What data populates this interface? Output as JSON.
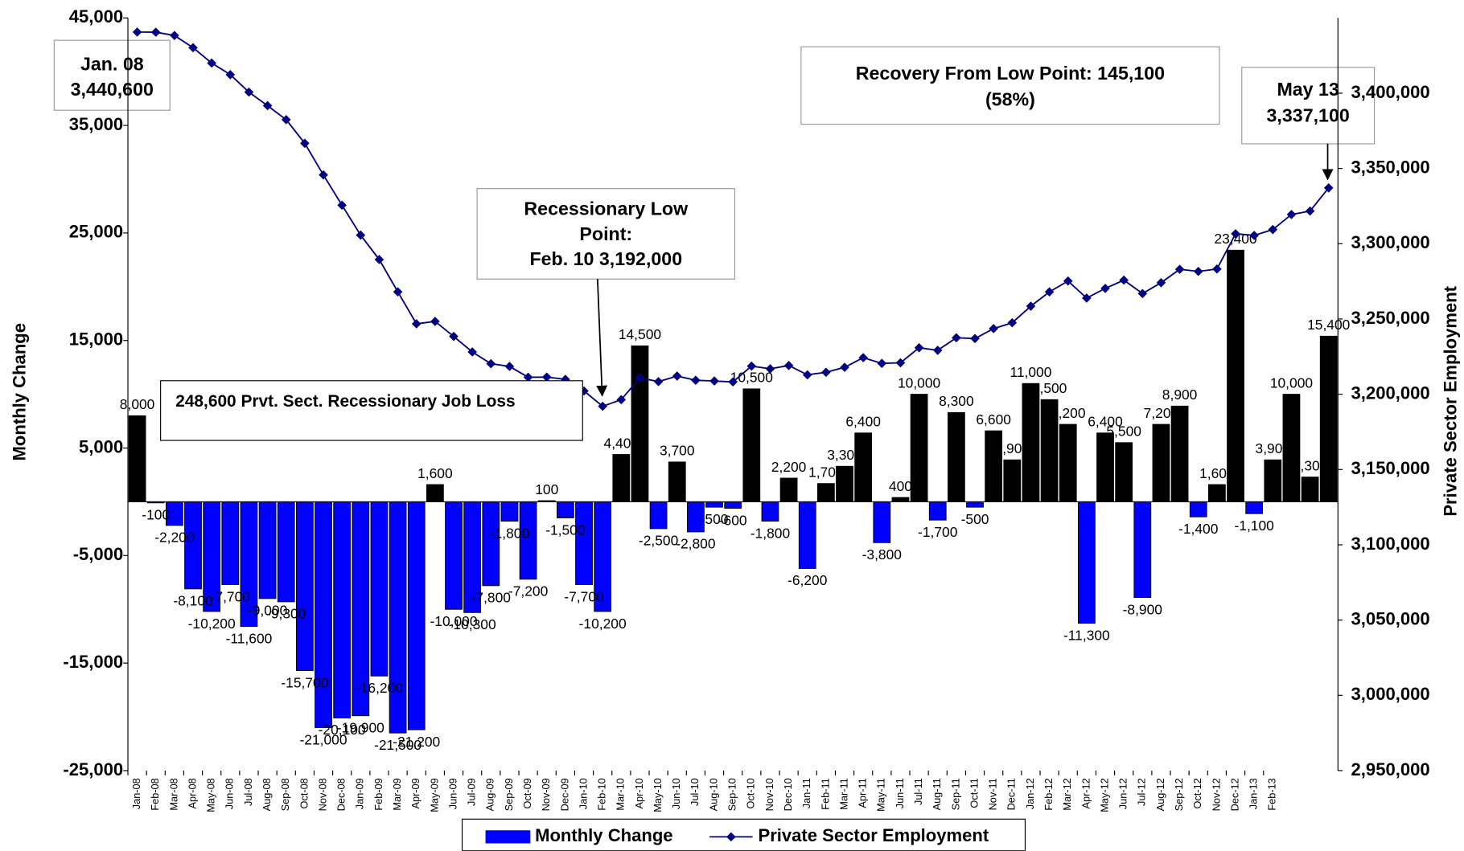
{
  "chart_data": {
    "type": "bar",
    "ylabel": "Monthly Change",
    "y2label": "Private Sector Employment",
    "categories": [
      "Jan-08",
      "Feb-08",
      "Mar-08",
      "Apr-08",
      "May-08",
      "Jun-08",
      "Jul-08",
      "Aug-08",
      "Sep-08",
      "Oct-08",
      "Nov-08",
      "Dec-08",
      "Jan-09",
      "Feb-09",
      "Mar-09",
      "Apr-09",
      "May-09",
      "Jun-09",
      "Jul-09",
      "Aug-09",
      "Sep-09",
      "Oct-09",
      "Nov-09",
      "Dec-09",
      "Jan-10",
      "Feb-10",
      "Mar-10",
      "Apr-10",
      "May-10",
      "Jun-10",
      "Jul-10",
      "Aug-10",
      "Sep-10",
      "Oct-10",
      "Nov-10",
      "Dec-10",
      "Jan-11",
      "Feb-11",
      "Mar-11",
      "Apr-11",
      "May-11",
      "Jun-11",
      "Jul-11",
      "Aug-11",
      "Sep-11",
      "Oct-11",
      "Nov-11",
      "Dec-11",
      "Jan-12",
      "Feb-12",
      "Mar-12",
      "Apr-12",
      "May-12",
      "Jun-12",
      "Jul-12",
      "Aug-12",
      "Sep-12",
      "Oct-12",
      "Nov-12",
      "Dec-12",
      "Jan-13",
      "Feb-13",
      null,
      null,
      null
    ],
    "series": [
      {
        "name": "Monthly Change",
        "type": "bar",
        "color": "#0000ff",
        "positive_color": "#000000",
        "values": [
          8000,
          -100,
          -2200,
          -8100,
          -10200,
          -7700,
          -11600,
          -9000,
          -9300,
          -15700,
          -21000,
          -20100,
          -19900,
          -16200,
          -21500,
          -21200,
          1600,
          -10000,
          -10300,
          -7800,
          -1800,
          -7200,
          100,
          -1500,
          -7700,
          -10200,
          4400,
          14500,
          -2500,
          3700,
          -2800,
          -500,
          -600,
          10500,
          -1800,
          2200,
          -6200,
          1700,
          3300,
          6400,
          -3800,
          400,
          10000,
          -1700,
          8300,
          -500,
          6600,
          3900,
          11000,
          9500,
          7200,
          -11300,
          6400,
          5500,
          -8900,
          7200,
          8900,
          -1400,
          1600,
          23400,
          -1100,
          3900,
          10000,
          2300,
          15400
        ],
        "value_labels": [
          "8,000",
          "-100",
          "-2,200",
          "-8,100",
          "-10,200",
          "-7,700",
          "-11,600",
          "-9,000",
          "-9,300",
          "-15,700",
          "-21,000",
          "-20,100",
          "-19,900",
          "-16,200",
          "-21,500",
          "-21,200",
          "1,600",
          "-10,000",
          "-10,300",
          "-7,800",
          "-1,800",
          "-7,200",
          "100",
          "-1,500",
          "-7,700",
          "-10,200",
          "4,400",
          "14,500",
          "-2,500",
          "3,700",
          "-2,800",
          "-500",
          "-600",
          "10,500",
          "-1,800",
          "2,200",
          "-6,200",
          "1,700",
          "3,300",
          "6,400",
          "-3,800",
          "400",
          "10,000",
          "-1,700",
          "8,300",
          "-500",
          "6,600",
          "3,900",
          "11,000",
          "9,500",
          "7,200",
          "-11,300",
          "6,400",
          "5,500",
          "-8,900",
          "7,200",
          "8,900",
          "-1,400",
          "1,600",
          "23,400",
          "-1,100",
          "3,900",
          "10,000",
          "2,300",
          "15,400"
        ]
      },
      {
        "name": "Private Sector Employment",
        "type": "line",
        "axis": "y2",
        "color": "#000080",
        "values": [
          3440600,
          3440500,
          3438300,
          3430200,
          3420000,
          3412300,
          3400700,
          3391700,
          3382400,
          3366700,
          3345700,
          3325600,
          3305700,
          3289500,
          3268000,
          3246800,
          3248400,
          3238400,
          3228100,
          3220300,
          3218500,
          3211300,
          3211400,
          3209900,
          3202200,
          3192000,
          3196400,
          3210900,
          3208400,
          3212100,
          3209300,
          3208800,
          3208200,
          3218700,
          3216900,
          3219100,
          3212900,
          3214600,
          3217900,
          3224300,
          3220500,
          3220900,
          3230900,
          3229200,
          3237500,
          3237000,
          3243600,
          3247500,
          3258500,
          3268000,
          3275200,
          3263900,
          3270300,
          3275800,
          3266900,
          3274100,
          3283000,
          3281600,
          3283200,
          3306600,
          3305500,
          3309400,
          3319400,
          3321700,
          3337100
        ]
      }
    ],
    "ylim": [
      -25000,
      45000
    ],
    "yticks": [
      {
        "value": -25000,
        "label": "-25,000"
      },
      {
        "value": -15000,
        "label": "-15,000"
      },
      {
        "value": -5000,
        "label": "-5,000"
      },
      {
        "value": 5000,
        "label": "5,000"
      },
      {
        "value": 15000,
        "label": "15,000"
      },
      {
        "value": 25000,
        "label": "25,000"
      },
      {
        "value": 35000,
        "label": "35,000"
      },
      {
        "value": 45000,
        "label": "45,000"
      }
    ],
    "y2lim": [
      2950000,
      3450000
    ],
    "y2ticks": [
      {
        "value": 2950000,
        "label": "2,950,000"
      },
      {
        "value": 3000000,
        "label": "3,000,000"
      },
      {
        "value": 3050000,
        "label": "3,050,000"
      },
      {
        "value": 3100000,
        "label": "3,100,000"
      },
      {
        "value": 3150000,
        "label": "3,150,000"
      },
      {
        "value": 3200000,
        "label": "3,200,000"
      },
      {
        "value": 3250000,
        "label": "3,250,000"
      },
      {
        "value": 3300000,
        "label": "3,300,000"
      },
      {
        "value": 3350000,
        "label": "3,350,000"
      },
      {
        "value": 3400000,
        "label": "3,400,000"
      }
    ],
    "legend": "bottom",
    "annotations": [
      {
        "lines": [
          "Jan. 08",
          "3,440,600"
        ]
      },
      {
        "lines": [
          "Recovery From Low Point: 145,100",
          "(58%)"
        ]
      },
      {
        "lines": [
          "May 13",
          "3,337,100"
        ]
      },
      {
        "lines": [
          "Recessionary Low",
          "Point:",
          "Feb. 10   3,192,000"
        ]
      },
      {
        "lines": [
          "248,600 Prvt. Sect. Recessionary Job Loss"
        ]
      }
    ]
  }
}
